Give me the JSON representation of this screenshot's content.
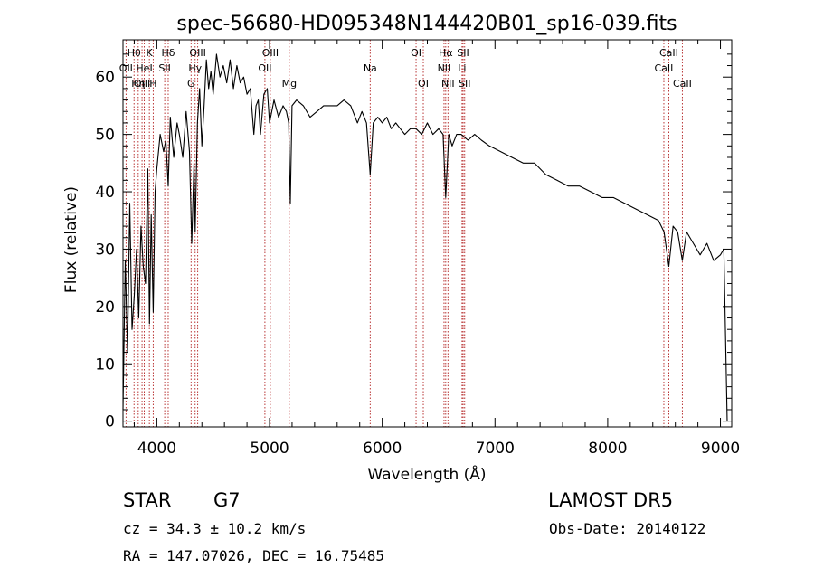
{
  "chart_data": {
    "type": "line",
    "title": "spec-56680-HD095348N144420B01_sp16-039.fits",
    "xlabel": "Wavelength (Å)",
    "ylabel": "Flux (relative)",
    "xlim": [
      3700,
      9100
    ],
    "ylim": [
      -1,
      66.5
    ],
    "x_ticks": [
      4000,
      5000,
      6000,
      7000,
      8000,
      9000
    ],
    "y_ticks": [
      0,
      10,
      20,
      30,
      40,
      50,
      60
    ],
    "grid": false,
    "line_color": "#000000",
    "marker_color": "#b22222",
    "series": [
      {
        "x": [
          3700,
          3720,
          3740,
          3760,
          3780,
          3800,
          3820,
          3840,
          3860,
          3880,
          3900,
          3920,
          3935,
          3950,
          3968,
          3985,
          4000,
          4030,
          4060,
          4080,
          4101,
          4120,
          4150,
          4180,
          4200,
          4230,
          4260,
          4290,
          4310,
          4330,
          4340,
          4360,
          4380,
          4400,
          4420,
          4440,
          4460,
          4480,
          4500,
          4530,
          4560,
          4590,
          4620,
          4650,
          4680,
          4710,
          4740,
          4770,
          4800,
          4830,
          4861,
          4880,
          4900,
          4920,
          4950,
          4980,
          5000,
          5040,
          5080,
          5120,
          5150,
          5170,
          5184,
          5200,
          5240,
          5300,
          5360,
          5420,
          5480,
          5540,
          5600,
          5660,
          5720,
          5780,
          5820,
          5860,
          5893,
          5920,
          5960,
          6000,
          6040,
          6080,
          6120,
          6160,
          6200,
          6250,
          6300,
          6350,
          6400,
          6450,
          6500,
          6540,
          6563,
          6590,
          6620,
          6660,
          6700,
          6760,
          6820,
          6880,
          6950,
          7050,
          7150,
          7250,
          7350,
          7450,
          7550,
          7650,
          7750,
          7850,
          7950,
          8050,
          8150,
          8250,
          8350,
          8450,
          8500,
          8542,
          8580,
          8620,
          8662,
          8700,
          8760,
          8820,
          8880,
          8940,
          9000,
          9030,
          9060
        ],
        "y": [
          2,
          28,
          12,
          38,
          16,
          22,
          30,
          18,
          34,
          27,
          24,
          44,
          17,
          36,
          19,
          40,
          44,
          50,
          47,
          49,
          41,
          53,
          46,
          52,
          50,
          46,
          54,
          47,
          31,
          45,
          33,
          52,
          58,
          48,
          55,
          63,
          58,
          61,
          57,
          64,
          60,
          62,
          59,
          63,
          58,
          62,
          59,
          60,
          57,
          58,
          50,
          55,
          56,
          50,
          57,
          58,
          52,
          56,
          53,
          55,
          54,
          52,
          38,
          55,
          56,
          55,
          53,
          54,
          55,
          55,
          55,
          56,
          55,
          52,
          54,
          52,
          43,
          52,
          53,
          52,
          53,
          51,
          52,
          51,
          50,
          51,
          51,
          50,
          52,
          50,
          51,
          50,
          39,
          50,
          48,
          50,
          50,
          49,
          50,
          49,
          48,
          47,
          46,
          45,
          45,
          43,
          42,
          41,
          41,
          40,
          39,
          39,
          38,
          37,
          36,
          35,
          33,
          27,
          34,
          33,
          28,
          33,
          31,
          29,
          31,
          28,
          29,
          30,
          0
        ]
      }
    ],
    "lines": [
      {
        "name": "Hθ",
        "x": 3798,
        "label_row": 1
      },
      {
        "name": "OII",
        "x": 3727,
        "label_row": 2
      },
      {
        "name": "Hη",
        "x": 3835,
        "label_row": 3
      },
      {
        "name": "OIII",
        "x": 3869,
        "label_row": 3
      },
      {
        "name": "HeI",
        "x": 3889,
        "label_row": 2
      },
      {
        "name": "K",
        "x": 3934,
        "label_row": 1
      },
      {
        "name": "H",
        "x": 3968,
        "label_row": 3
      },
      {
        "name": "Hδ",
        "x": 4101,
        "label_row": 1
      },
      {
        "name": "SII",
        "x": 4070,
        "label_row": 2
      },
      {
        "name": "OIII",
        "x": 4363,
        "label_row": 1
      },
      {
        "name": "Hγ",
        "x": 4340,
        "label_row": 2
      },
      {
        "name": "G",
        "x": 4304,
        "label_row": 3
      },
      {
        "name": "OIII",
        "x": 5007,
        "label_row": 1
      },
      {
        "name": "OII",
        "x": 4959,
        "label_row": 2
      },
      {
        "name": "Mg",
        "x": 5175,
        "label_row": 3
      },
      {
        "name": "Na",
        "x": 5893,
        "label_row": 2
      },
      {
        "name": "OI",
        "x": 6300,
        "label_row": 1
      },
      {
        "name": "OI",
        "x": 6364,
        "label_row": 3
      },
      {
        "name": "Hα",
        "x": 6563,
        "label_row": 1
      },
      {
        "name": "NII",
        "x": 6548,
        "label_row": 2
      },
      {
        "name": "NII",
        "x": 6583,
        "label_row": 3
      },
      {
        "name": "SII",
        "x": 6717,
        "label_row": 1
      },
      {
        "name": "Li",
        "x": 6708,
        "label_row": 2
      },
      {
        "name": "SII",
        "x": 6731,
        "label_row": 3
      },
      {
        "name": "CaII",
        "x": 8542,
        "label_row": 1
      },
      {
        "name": "CaII",
        "x": 8498,
        "label_row": 2
      },
      {
        "name": "CaII",
        "x": 8662,
        "label_row": 3
      }
    ]
  },
  "footer": {
    "class_label": "STAR",
    "subclass": "G7",
    "survey": "LAMOST DR5",
    "cz": "cz = 34.3 ± 10.2 km/s",
    "obs_date": "Obs-Date: 20140122",
    "coords": "RA = 147.07026, DEC =  16.75485"
  }
}
